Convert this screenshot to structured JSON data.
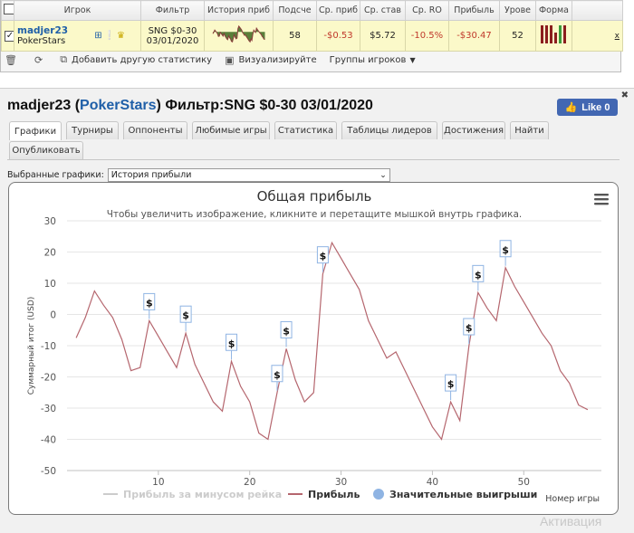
{
  "grid": {
    "headers": [
      "",
      "Игрок",
      "Фильтр",
      "История приб",
      "Подсче",
      "Ср. приб",
      "Ср. став",
      "Ср. RO",
      "Прибыль",
      "Урове",
      "Форма",
      ""
    ],
    "row": {
      "checked": "✓",
      "player_name": "madjer23",
      "player_site": "PokerStars",
      "filter_line1": "SNG $0-30",
      "filter_line2": "03/01/2020",
      "count": "58",
      "avg_profit": "-$0.53",
      "avg_stake": "$5.72",
      "avg_roi": "-10.5%",
      "profit": "-$30.47",
      "level": "52",
      "remove": "x",
      "form_bars": [
        {
          "value": 1,
          "color": "#8b1d1d"
        },
        {
          "value": 1,
          "color": "#8b1d1d"
        },
        {
          "value": 1,
          "color": "#8b1d1d"
        },
        {
          "value": 0.6,
          "color": "#8b1d1d"
        },
        {
          "value": 1,
          "color": "#3c9a3c"
        },
        {
          "value": 1,
          "color": "#8b1d1d"
        }
      ]
    },
    "toolbar": {
      "add_stats": "Добавить другую статистику",
      "visualize": "Визуализируйте",
      "player_groups": "Группы игроков"
    }
  },
  "header": {
    "player": "madjer23",
    "site": "PokerStars",
    "filter_text": "Фильтр:SNG $0-30 03/01/2020",
    "like_label": "Like 0"
  },
  "tabs": [
    {
      "label": "Графики",
      "active": true
    },
    {
      "label": "Турниры",
      "active": false
    },
    {
      "label": "Оппоненты",
      "active": false
    },
    {
      "label": "Любимые игры",
      "active": false
    },
    {
      "label": "Статистика",
      "active": false
    },
    {
      "label": "Таблицы лидеров",
      "active": false
    },
    {
      "label": "Достижения",
      "active": false
    },
    {
      "label": "Найти",
      "active": false
    },
    {
      "label": "Опубликовать",
      "active": false
    }
  ],
  "selector": {
    "label": "Выбранные графики:",
    "value": "История прибыли"
  },
  "chart_data": {
    "type": "line",
    "title": "Общая прибыль",
    "subtitle": "Чтобы увеличить изображение, кликните и перетащите мышкой внутрь графика.",
    "xlabel": "Номер игры",
    "ylabel": "Суммарный итог (USD)",
    "xlim": [
      0,
      58.5
    ],
    "ylim": [
      -50,
      30
    ],
    "xticks": [
      10,
      20,
      30,
      40,
      50
    ],
    "yticks": [
      30,
      20,
      10,
      0,
      -10,
      -20,
      -30,
      -40,
      -50
    ],
    "series": [
      {
        "name": "Прибыль",
        "color": "#b5666e",
        "x": [
          1,
          2,
          3,
          4,
          5,
          6,
          7,
          8,
          9,
          10,
          11,
          12,
          13,
          14,
          15,
          16,
          17,
          18,
          19,
          20,
          21,
          22,
          23,
          24,
          25,
          26,
          27,
          28,
          29,
          30,
          31,
          32,
          33,
          34,
          35,
          36,
          37,
          38,
          39,
          40,
          41,
          42,
          43,
          44,
          45,
          46,
          47,
          48,
          49,
          50,
          51,
          52,
          53,
          54,
          55,
          56,
          57,
          58
        ],
        "y": [
          -7.5,
          -1,
          7.5,
          3,
          -1,
          -8,
          -18,
          -17,
          -2,
          -7,
          -12,
          -17,
          -6,
          -16,
          -22,
          -28,
          -31,
          -15,
          -23,
          -28,
          -38,
          -40,
          -25,
          -11,
          -21,
          -28,
          -25,
          13,
          23,
          18,
          13,
          8,
          -2,
          -8,
          -14,
          -12,
          -18,
          -24,
          -30,
          -36,
          -40,
          -28,
          -34,
          -10,
          7,
          2,
          -2,
          15,
          9,
          4,
          -1,
          -6,
          -10,
          -18,
          -22,
          -29,
          -30.5,
          null
        ]
      },
      {
        "name": "Прибыль за минусом рейка",
        "color": "#cccccc",
        "x": [],
        "y": []
      }
    ],
    "big_wins": {
      "name": "Значительные выигрыши",
      "marker_color": "#8fb4e3",
      "label": "$",
      "x": [
        9,
        13,
        18,
        23,
        24,
        28,
        42,
        44,
        45,
        48
      ]
    },
    "legend_position": "bottom-center"
  },
  "watermark": "Активация"
}
